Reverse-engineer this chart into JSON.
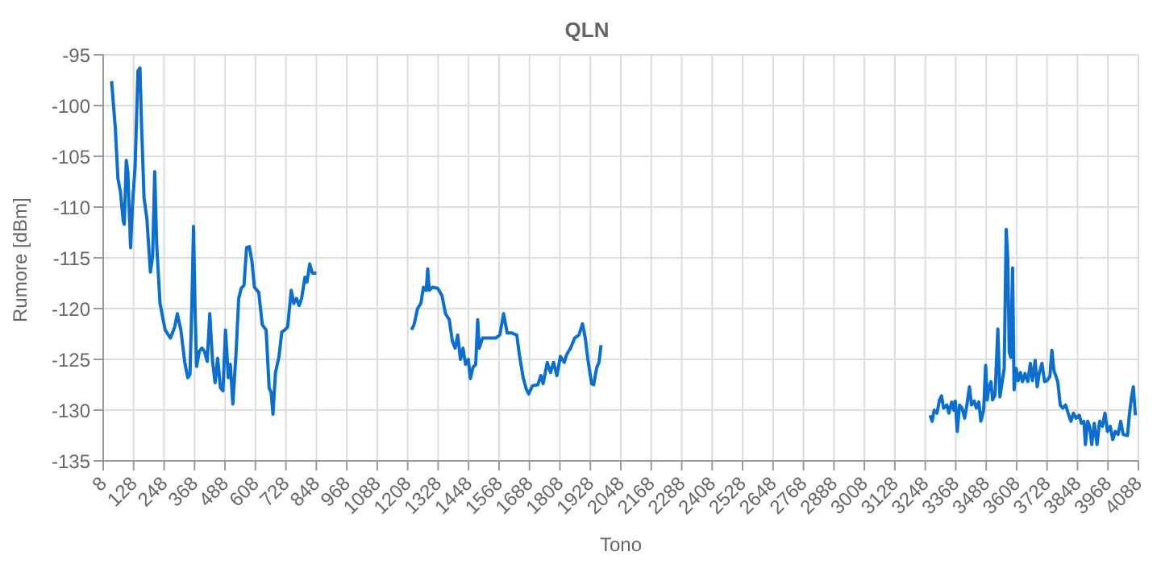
{
  "chart_data": {
    "type": "line",
    "title": "QLN",
    "xlabel": "Tono",
    "ylabel": "Rumore [dBm]",
    "grid": true,
    "marker": "none",
    "line_style": "solid",
    "xlim": [
      8,
      4088
    ],
    "xticks": [
      8,
      128,
      248,
      368,
      488,
      608,
      728,
      848,
      968,
      1088,
      1208,
      1328,
      1448,
      1568,
      1688,
      1808,
      1928,
      2048,
      2168,
      2288,
      2408,
      2528,
      2648,
      2768,
      2888,
      3008,
      3128,
      3248,
      3368,
      3488,
      3608,
      3728,
      3848,
      3968,
      4088
    ],
    "ylim": [
      -135,
      -95
    ],
    "yticks": [
      -135,
      -130,
      -125,
      -120,
      -115,
      -110,
      -105,
      -100,
      -95
    ],
    "x": [
      41,
      56,
      66,
      76,
      87,
      91,
      99,
      105,
      116,
      124,
      134,
      145,
      153,
      159,
      169,
      180,
      194,
      203,
      211,
      219,
      232,
      252,
      273,
      290,
      300,
      314,
      329,
      341,
      350,
      358,
      364,
      370,
      376,
      387,
      397,
      407,
      418,
      428,
      439,
      449,
      459,
      470,
      480,
      490,
      501,
      509,
      519,
      532,
      542,
      552,
      563,
      573,
      584,
      594,
      604,
      621,
      635,
      650,
      662,
      670,
      677,
      687,
      701,
      712,
      724,
      735,
      749,
      759,
      770,
      780,
      790,
      803,
      811,
      822,
      832,
      848,
      1000,
      1223,
      1233,
      1247,
      1260,
      1270,
      1281,
      1287,
      1293,
      1306,
      1326,
      1343,
      1357,
      1372,
      1384,
      1395,
      1405,
      1416,
      1426,
      1436,
      1447,
      1455,
      1465,
      1476,
      1484,
      1490,
      1503,
      1524,
      1555,
      1571,
      1586,
      1600,
      1617,
      1638,
      1648,
      1663,
      1675,
      1685,
      1700,
      1721,
      1733,
      1742,
      1758,
      1771,
      1783,
      1796,
      1810,
      1825,
      1835,
      1850,
      1866,
      1883,
      1897,
      1908,
      1918,
      1933,
      1941,
      1953,
      1962,
      1970,
      2600,
      3267,
      3275,
      3283,
      3294,
      3304,
      3312,
      3320,
      3333,
      3341,
      3352,
      3360,
      3366,
      3374,
      3383,
      3393,
      3403,
      3412,
      3422,
      3430,
      3441,
      3449,
      3459,
      3467,
      3478,
      3486,
      3492,
      3499,
      3507,
      3513,
      3523,
      3534,
      3542,
      3550,
      3559,
      3567,
      3573,
      3579,
      3585,
      3592,
      3598,
      3606,
      3614,
      3623,
      3631,
      3641,
      3652,
      3662,
      3670,
      3681,
      3689,
      3697,
      3708,
      3718,
      3728,
      3739,
      3747,
      3755,
      3770,
      3780,
      3790,
      3801,
      3811,
      3822,
      3832,
      3842,
      3855,
      3863,
      3873,
      3879,
      3888,
      3896,
      3904,
      3914,
      3925,
      3935,
      3946,
      3956,
      3966,
      3977,
      3987,
      3997,
      4008,
      4018,
      4028,
      4045,
      4053,
      4061,
      4068,
      4076
    ],
    "series": [
      {
        "color": "#0b6fd0",
        "values": [
          -97.6,
          -102.3,
          -107.2,
          -108.5,
          -111.4,
          -111.7,
          -105.4,
          -106.5,
          -114,
          -109.6,
          -105.9,
          -96.6,
          -96.3,
          -101.8,
          -109.1,
          -111.1,
          -116.4,
          -114.8,
          -106.5,
          -113.8,
          -119.5,
          -122.1,
          -122.9,
          -121.8,
          -120.5,
          -122.1,
          -125.2,
          -126.8,
          -126.5,
          -119,
          -111.9,
          -120,
          -125.7,
          -124.2,
          -123.9,
          -124.2,
          -125.2,
          -120.5,
          -125.2,
          -127.3,
          -124.9,
          -127.8,
          -128.1,
          -122.1,
          -126.8,
          -125.5,
          -129.4,
          -124.2,
          -119,
          -118,
          -117.7,
          -114,
          -113.9,
          -115.3,
          -117.9,
          -118.4,
          -121.6,
          -122.1,
          -127.8,
          -128.3,
          -130.4,
          -126.3,
          -124.7,
          -122.3,
          -122.1,
          -121.8,
          -118.2,
          -119.5,
          -119,
          -119.7,
          -119,
          -116.9,
          -117.4,
          -115.6,
          -116.5,
          -116.5,
          null,
          -122.1,
          -121.6,
          -120,
          -119.5,
          -117.9,
          -118.2,
          -116.1,
          -118.2,
          -117.9,
          -118,
          -118.7,
          -120.5,
          -121.1,
          -123.2,
          -123.9,
          -122.6,
          -125,
          -123.9,
          -125.5,
          -125,
          -126.9,
          -125.8,
          -125.5,
          -121.1,
          -123.9,
          -122.9,
          -122.9,
          -122.9,
          -122.6,
          -120.5,
          -122.4,
          -122.4,
          -122.6,
          -124.5,
          -126.8,
          -127.9,
          -128.4,
          -127.6,
          -127.5,
          -126.6,
          -127.4,
          -125.3,
          -126.3,
          -125.3,
          -126.6,
          -124.7,
          -125.3,
          -124.5,
          -123.9,
          -122.9,
          -122.6,
          -121.5,
          -122.9,
          -125,
          -127.4,
          -127.5,
          -125.8,
          -125.3,
          -123.6,
          null,
          -130.5,
          -131.1,
          -130,
          -130.3,
          -129,
          -128.6,
          -129.8,
          -129.5,
          -130.3,
          -129.2,
          -130,
          -129.1,
          -132.1,
          -129.5,
          -129.8,
          -130.8,
          -129.5,
          -127.7,
          -129.5,
          -129.1,
          -129.8,
          -129.2,
          -131.1,
          -130,
          -125.6,
          -129,
          -127.7,
          -127.2,
          -129,
          -128.5,
          -122,
          -128.7,
          -127.4,
          -125.9,
          -112.2,
          -115,
          -124.3,
          -124.8,
          -116,
          -128,
          -125.9,
          -127.1,
          -126.3,
          -127.2,
          -126.4,
          -127.2,
          -125.4,
          -127.1,
          -125.1,
          -127.7,
          -126.4,
          -125.4,
          -127.2,
          -127.1,
          -126.7,
          -124.1,
          -126.1,
          -127.2,
          -129.5,
          -129.8,
          -129.5,
          -130.3,
          -131.1,
          -130.3,
          -130.8,
          -130.5,
          -131.3,
          -131.1,
          -133.4,
          -131.1,
          -131.6,
          -133.4,
          -131.3,
          -133.4,
          -131.1,
          -131.6,
          -130.3,
          -132.1,
          -131.6,
          -132.9,
          -132.1,
          -132.4,
          -131.1,
          -132.4,
          -132.5,
          -130.3,
          -128.7,
          -127.7,
          -130.5
        ]
      }
    ]
  }
}
